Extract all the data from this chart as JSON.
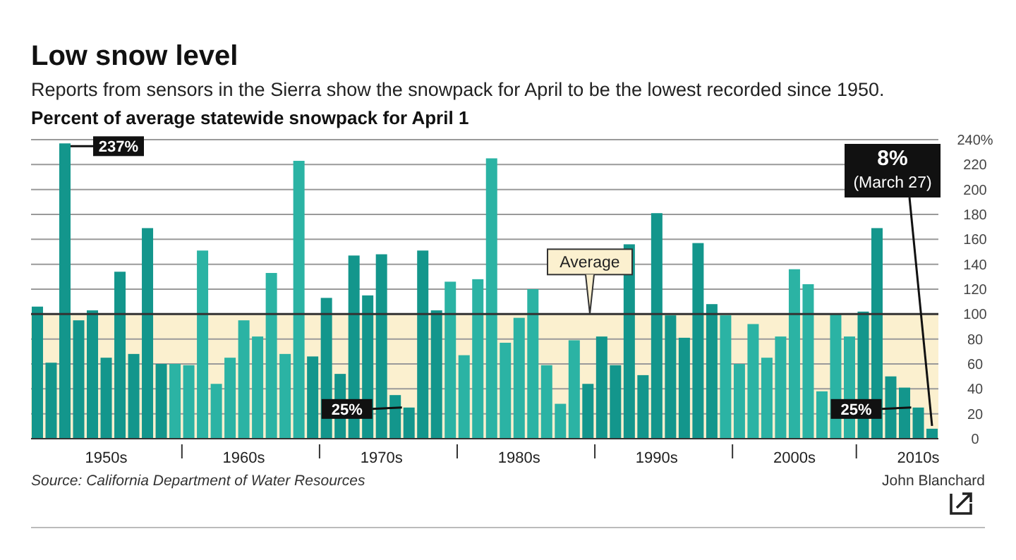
{
  "chart_data": {
    "type": "bar",
    "title": "Low snow level",
    "subtitle": "Reports from sensors in the Sierra show the snowpack for April to be the lowest recorded since 1950.",
    "ylabel": "Percent of average statewide snowpack for April 1",
    "categories": [
      null,
      null,
      null,
      null,
      null,
      "1950s",
      null,
      null,
      null,
      null,
      null,
      null,
      null,
      null,
      null,
      "1960s",
      null,
      null,
      null,
      null,
      null,
      null,
      null,
      null,
      null,
      "1970s",
      null,
      null,
      null,
      null,
      null,
      null,
      null,
      null,
      null,
      "1980s",
      null,
      null,
      null,
      null,
      null,
      null,
      null,
      null,
      null,
      "1990s",
      null,
      null,
      null,
      null,
      null,
      null,
      null,
      null,
      null,
      "2000s",
      null,
      null,
      null,
      null,
      null,
      null,
      null,
      null,
      "2010s",
      null
    ],
    "values": [
      106,
      61,
      237,
      95,
      103,
      65,
      134,
      68,
      169,
      60,
      60,
      59,
      151,
      44,
      65,
      95,
      82,
      133,
      68,
      223,
      66,
      113,
      52,
      147,
      115,
      148,
      35,
      25,
      151,
      103,
      126,
      67,
      128,
      225,
      77,
      97,
      120,
      59,
      28,
      79,
      44,
      82,
      59,
      156,
      51,
      181,
      99,
      81,
      157,
      108,
      99,
      60,
      92,
      65,
      82,
      136,
      124,
      38,
      100,
      82,
      102,
      169,
      50,
      41,
      25,
      8
    ],
    "colors": [
      "#13968c",
      "#13968c",
      "#13968c",
      "#13968c",
      "#13968c",
      "#13968c",
      "#13968c",
      "#13968c",
      "#13968c",
      "#13968c",
      "#2bb3a4",
      "#2bb3a4",
      "#2bb3a4",
      "#2bb3a4",
      "#2bb3a4",
      "#2bb3a4",
      "#2bb3a4",
      "#2bb3a4",
      "#2bb3a4",
      "#2bb3a4",
      "#13968c",
      "#13968c",
      "#13968c",
      "#13968c",
      "#13968c",
      "#13968c",
      "#13968c",
      "#13968c",
      "#13968c",
      "#13968c",
      "#2bb3a4",
      "#2bb3a4",
      "#2bb3a4",
      "#2bb3a4",
      "#2bb3a4",
      "#2bb3a4",
      "#2bb3a4",
      "#2bb3a4",
      "#2bb3a4",
      "#2bb3a4",
      "#13968c",
      "#13968c",
      "#13968c",
      "#13968c",
      "#13968c",
      "#13968c",
      "#13968c",
      "#13968c",
      "#13968c",
      "#13968c",
      "#2bb3a4",
      "#2bb3a4",
      "#2bb3a4",
      "#2bb3a4",
      "#2bb3a4",
      "#2bb3a4",
      "#2bb3a4",
      "#2bb3a4",
      "#2bb3a4",
      "#2bb3a4",
      "#13968c",
      "#13968c",
      "#13968c",
      "#13968c",
      "#13968c",
      "#13968c"
    ],
    "value_labels": [
      null,
      null,
      "237%",
      null,
      null,
      null,
      null,
      null,
      null,
      null,
      null,
      null,
      null,
      null,
      null,
      null,
      null,
      null,
      null,
      null,
      null,
      null,
      null,
      null,
      null,
      null,
      null,
      "25%",
      null,
      null,
      null,
      null,
      null,
      null,
      null,
      null,
      null,
      null,
      null,
      null,
      null,
      null,
      null,
      null,
      null,
      null,
      null,
      null,
      null,
      null,
      null,
      null,
      null,
      null,
      null,
      null,
      null,
      null,
      null,
      null,
      null,
      null,
      null,
      null,
      "25%",
      "8%\n(March 27)"
    ],
    "ylim": [
      0,
      240
    ],
    "yticks": [
      0,
      20,
      40,
      60,
      80,
      100,
      120,
      140,
      160,
      180,
      200,
      220,
      {
        "value": 240,
        "label": "240%"
      }
    ],
    "grid": "y",
    "ref_lines": [
      {
        "axis": "y",
        "value": 100,
        "label": "Average",
        "color": "#333333"
      }
    ],
    "bands": [
      {
        "axis": "y",
        "from": 0,
        "to": 100,
        "color": "#fbf0cf"
      }
    ],
    "annotations": [
      "Source: California Department of Water Resources",
      "John Blanchard"
    ]
  }
}
